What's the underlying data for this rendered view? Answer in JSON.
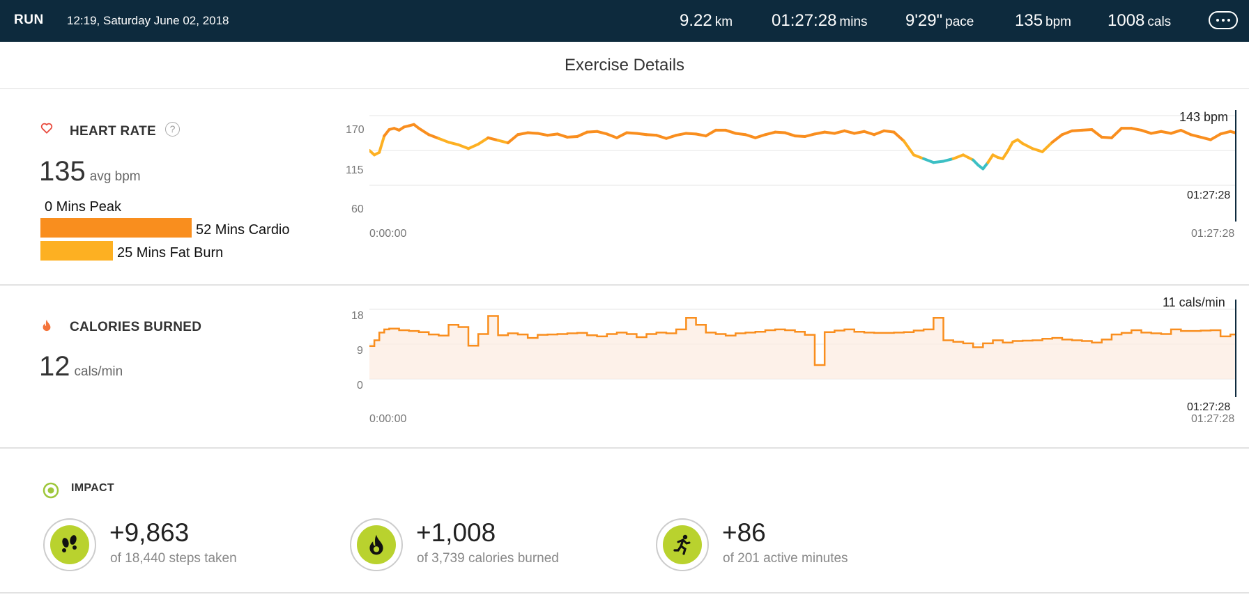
{
  "header": {
    "activity": "RUN",
    "datetime": "12:19, Saturday June 02, 2018",
    "distance": {
      "value": "9.22",
      "unit": "km"
    },
    "duration": {
      "value": "01:27:28",
      "unit": "mins"
    },
    "pace": {
      "value": "9'29\"",
      "unit": "pace"
    },
    "heart": {
      "value": "135",
      "unit": "bpm"
    },
    "calories": {
      "value": "1008",
      "unit": "cals"
    },
    "more_icon": "more-dots-icon"
  },
  "page_title": "Exercise Details",
  "heart_rate": {
    "heading": "HEART RATE",
    "icon": "heart-icon",
    "help_icon": "question-icon",
    "avg_value": "135",
    "avg_unit": "avg bpm",
    "zones": [
      {
        "label": "0 Mins Peak",
        "minutes": 0,
        "color": "#e8483b"
      },
      {
        "label": "52 Mins Cardio",
        "minutes": 52,
        "color": "#f98e1e"
      },
      {
        "label": "25 Mins Fat Burn",
        "minutes": 25,
        "color": "#fdb022"
      }
    ],
    "current_label": "143 bpm",
    "end_time_label": "01:27:28",
    "x_start": "0:00:00",
    "x_end": "01:27:28"
  },
  "calories_burned": {
    "heading": "CALORIES BURNED",
    "icon": "flame-icon",
    "value": "12",
    "unit": "cals/min",
    "current_label": "11 cals/min",
    "end_time_label": "01:27:28",
    "x_start": "0:00:00",
    "x_end": "01:27:28"
  },
  "impact": {
    "heading": "IMPACT",
    "icon": "target-icon",
    "items": [
      {
        "value": "+9,863",
        "sub": "of 18,440 steps taken",
        "icon": "footprints-icon"
      },
      {
        "value": "+1,008",
        "sub": "of 3,739 calories burned",
        "icon": "flame-icon"
      },
      {
        "value": "+86",
        "sub": "of 201 active minutes",
        "icon": "runner-icon"
      }
    ]
  },
  "chart_data": [
    {
      "type": "line",
      "title": "HEART RATE",
      "ylabel": "bpm",
      "ylim": [
        60,
        170
      ],
      "yticks": [
        60,
        115,
        170
      ],
      "xlim": [
        "0:00:00",
        "01:27:28"
      ],
      "x_minutes": [
        0,
        0.5,
        1,
        1.5,
        2,
        2.5,
        3,
        3.5,
        4,
        4.5,
        5,
        6,
        7,
        8,
        9,
        10,
        11,
        12,
        13,
        14,
        15,
        16,
        17,
        18,
        19,
        20,
        21,
        22,
        23,
        24,
        25,
        26,
        27,
        28,
        29,
        30,
        31,
        32,
        33,
        34,
        35,
        36,
        37,
        38,
        39,
        40,
        41,
        42,
        43,
        44,
        45,
        46,
        47,
        48,
        49,
        50,
        51,
        52,
        53,
        54,
        55,
        56,
        57,
        58,
        59,
        60,
        60.5,
        61,
        61.5,
        62,
        62.5,
        63,
        63.5,
        64,
        64.5,
        65,
        65.5,
        66,
        67,
        68,
        69,
        70,
        71,
        72,
        73,
        74,
        75,
        76,
        77,
        78,
        79,
        80,
        81,
        82,
        83,
        84,
        85,
        86,
        87,
        87.47
      ],
      "series": [
        {
          "values": [
            115,
            108,
            112,
            138,
            148,
            150,
            147,
            152,
            154,
            156,
            150,
            140,
            134,
            128,
            124,
            118,
            125,
            135,
            131,
            127,
            140,
            143,
            142,
            139,
            141,
            136,
            137,
            144,
            145,
            141,
            135,
            143,
            142,
            140,
            139,
            134,
            139,
            142,
            141,
            138,
            147,
            147,
            142,
            140,
            135,
            140,
            144,
            143,
            138,
            137,
            141,
            144,
            142,
            146,
            142,
            145,
            140,
            146,
            144,
            130,
            108,
            102,
            96,
            98,
            102,
            108,
            104,
            100,
            92,
            86,
            96,
            108,
            104,
            102,
            114,
            128,
            132,
            126,
            118,
            113,
            128,
            140,
            146,
            147,
            148,
            136,
            135,
            150,
            150,
            147,
            142,
            145,
            142,
            147,
            140,
            136,
            132,
            141,
            145,
            143
          ]
        }
      ]
    },
    {
      "type": "area",
      "title": "CALORIES BURNED",
      "ylabel": "cals/min",
      "ylim": [
        0,
        18
      ],
      "yticks": [
        0,
        9,
        18
      ],
      "xlim": [
        "0:00:00",
        "01:27:28"
      ],
      "x_minutes": [
        0,
        0.5,
        1,
        1.5,
        2,
        3,
        4,
        5,
        6,
        7,
        8,
        9,
        10,
        11,
        12,
        13,
        14,
        15,
        16,
        17,
        18,
        19,
        20,
        21,
        22,
        23,
        24,
        25,
        26,
        27,
        28,
        29,
        30,
        31,
        32,
        33,
        34,
        35,
        36,
        37,
        38,
        39,
        40,
        41,
        42,
        43,
        44,
        45,
        46,
        47,
        48,
        49,
        50,
        51,
        52,
        53,
        54,
        55,
        56,
        57,
        58,
        59,
        60,
        61,
        62,
        63,
        64,
        65,
        66,
        67,
        68,
        69,
        70,
        71,
        72,
        73,
        74,
        75,
        76,
        77,
        78,
        79,
        80,
        81,
        82,
        83,
        84,
        85,
        86,
        87,
        87.47
      ],
      "values": [
        8.5,
        10,
        12,
        12.8,
        13,
        12.6,
        12.4,
        12.1,
        11.5,
        11.2,
        14,
        13.4,
        8.6,
        11.6,
        16.3,
        11.3,
        11.8,
        11.5,
        10.6,
        11.4,
        11.5,
        11.6,
        11.8,
        11.9,
        11.3,
        11.0,
        11.6,
        12.0,
        11.6,
        10.8,
        11.6,
        12.0,
        11.8,
        12.8,
        15.8,
        14.0,
        12.0,
        11.6,
        11.2,
        11.8,
        12.0,
        12.2,
        12.6,
        12.8,
        12.6,
        12.2,
        11.4,
        3.6,
        12.1,
        12.5,
        12.8,
        12.2,
        12.0,
        11.9,
        11.9,
        12.0,
        12.1,
        12.5,
        12.8,
        15.8,
        10.0,
        9.6,
        9.2,
        8.2,
        9.2,
        10.0,
        9.4,
        9.8,
        9.9,
        10.0,
        10.4,
        10.6,
        10.2,
        10.0,
        9.8,
        9.4,
        10.2,
        11.5,
        11.9,
        12.6,
        12.0,
        11.8,
        11.6,
        12.8,
        12.4,
        12.4,
        12.5,
        12.6,
        11.0,
        11.5,
        11.3
      ]
    }
  ]
}
